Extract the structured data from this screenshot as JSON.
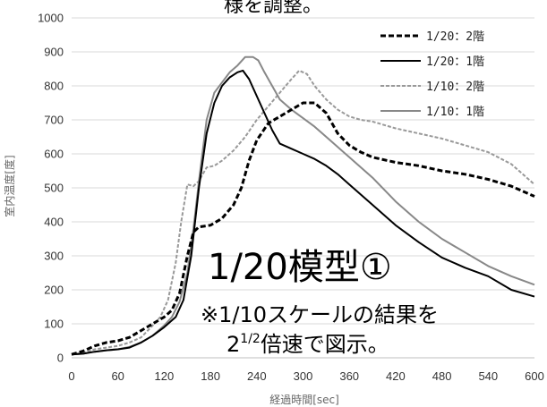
{
  "header_fragment": "様を調整。",
  "annotation_title": "1/20模型①",
  "note": {
    "line1": "※1/10スケールの結果を",
    "line2_prefix": "2",
    "line2_sup": "1/2",
    "line2_suffix": "倍速で図示。"
  },
  "chart_data": {
    "type": "line",
    "xlabel": "経過時間[sec]",
    "ylabel": "室内温度[度]",
    "xlim": [
      0,
      600
    ],
    "ylim": [
      0,
      1000
    ],
    "xticks": [
      0,
      60,
      120,
      180,
      240,
      300,
      360,
      420,
      480,
      540,
      600
    ],
    "yticks": [
      0,
      100,
      200,
      300,
      400,
      500,
      600,
      700,
      800,
      900,
      1000
    ],
    "grid": "horizontal",
    "legend_position": "top-right",
    "series": [
      {
        "name": "1/20：2階",
        "color": "#000000",
        "dashed": true,
        "x": [
          0,
          15,
          30,
          45,
          60,
          75,
          90,
          105,
          120,
          130,
          140,
          150,
          158,
          165,
          180,
          195,
          210,
          220,
          230,
          240,
          255,
          270,
          285,
          300,
          315,
          330,
          345,
          360,
          375,
          390,
          420,
          450,
          480,
          510,
          540,
          570,
          600
        ],
        "y": [
          10,
          20,
          35,
          45,
          50,
          60,
          80,
          100,
          120,
          140,
          190,
          300,
          370,
          385,
          390,
          410,
          450,
          500,
          580,
          640,
          690,
          710,
          730,
          750,
          750,
          720,
          660,
          625,
          605,
          590,
          575,
          565,
          550,
          540,
          525,
          505,
          475
        ]
      },
      {
        "name": "1/20：1階",
        "color": "#000000",
        "dashed": false,
        "x": [
          0,
          15,
          30,
          45,
          60,
          75,
          90,
          105,
          120,
          135,
          145,
          155,
          165,
          175,
          185,
          195,
          205,
          215,
          222,
          230,
          240,
          250,
          260,
          270,
          285,
          300,
          315,
          330,
          345,
          360,
          390,
          420,
          450,
          480,
          510,
          540,
          570,
          600
        ],
        "y": [
          10,
          12,
          18,
          22,
          25,
          30,
          45,
          65,
          90,
          120,
          170,
          300,
          500,
          660,
          750,
          800,
          825,
          840,
          845,
          820,
          770,
          720,
          670,
          630,
          615,
          600,
          585,
          565,
          540,
          510,
          450,
          390,
          340,
          295,
          265,
          240,
          200,
          180
        ]
      },
      {
        "name": "1/10：2階",
        "color": "#999999",
        "dashed": true,
        "x": [
          0,
          15,
          30,
          45,
          60,
          75,
          90,
          105,
          115,
          125,
          135,
          142,
          150,
          158,
          165,
          175,
          185,
          195,
          210,
          225,
          240,
          255,
          270,
          285,
          295,
          305,
          315,
          330,
          345,
          360,
          375,
          390,
          420,
          450,
          480,
          510,
          540,
          570,
          600
        ],
        "y": [
          10,
          15,
          25,
          30,
          35,
          45,
          60,
          95,
          120,
          170,
          280,
          400,
          510,
          505,
          520,
          560,
          565,
          580,
          610,
          650,
          700,
          740,
          780,
          820,
          845,
          835,
          800,
          760,
          730,
          710,
          700,
          695,
          675,
          660,
          645,
          625,
          605,
          570,
          510
        ]
      },
      {
        "name": "1/10：1階",
        "color": "#888888",
        "dashed": false,
        "x": [
          0,
          15,
          30,
          45,
          60,
          75,
          90,
          105,
          120,
          130,
          140,
          150,
          158,
          165,
          175,
          185,
          195,
          205,
          215,
          225,
          235,
          242,
          250,
          260,
          270,
          285,
          300,
          315,
          330,
          345,
          360,
          390,
          420,
          450,
          480,
          510,
          540,
          570,
          600
        ],
        "y": [
          10,
          12,
          18,
          22,
          25,
          32,
          45,
          65,
          95,
          120,
          165,
          250,
          380,
          520,
          700,
          780,
          810,
          840,
          860,
          885,
          885,
          875,
          840,
          800,
          760,
          730,
          705,
          680,
          650,
          620,
          590,
          530,
          460,
          400,
          350,
          310,
          270,
          240,
          215
        ]
      }
    ]
  }
}
